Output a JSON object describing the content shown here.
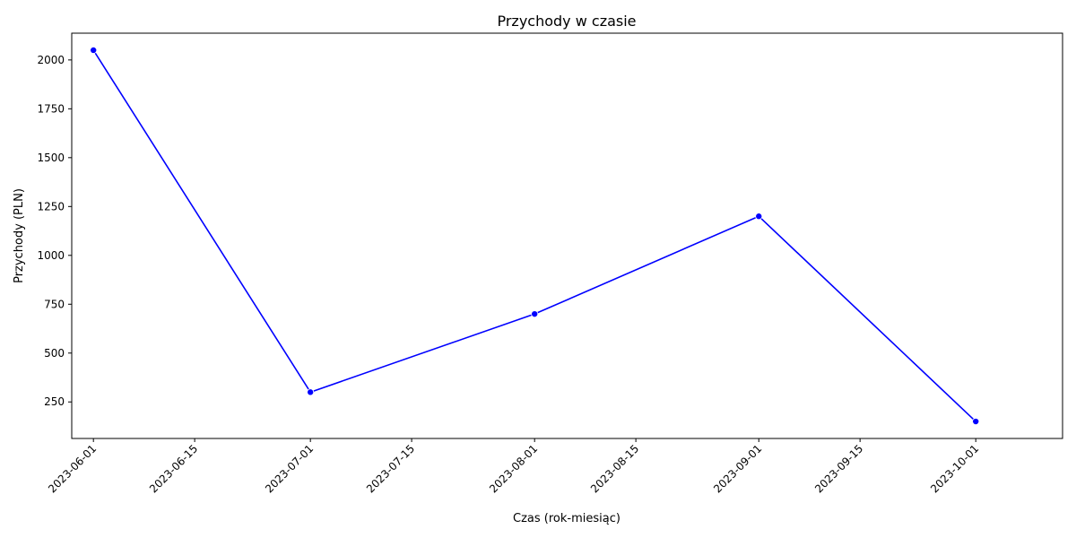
{
  "chart_data": {
    "type": "line",
    "title": "Przychody w czasie",
    "xlabel": "Czas (rok-miesiąc)",
    "ylabel": "Przychody (PLN)",
    "x": [
      "2023-06-01",
      "2023-07-01",
      "2023-08-01",
      "2023-09-01",
      "2023-10-01"
    ],
    "series": [
      {
        "values": [
          2050,
          300,
          700,
          1200,
          150
        ],
        "color": "#0000ff",
        "marker": "circle"
      }
    ],
    "xlim": [
      "2023-05-29",
      "2023-10-13"
    ],
    "ylim": [
      63,
      2137
    ],
    "x_ticks": [
      "2023-06-01",
      "2023-06-15",
      "2023-07-01",
      "2023-07-15",
      "2023-08-01",
      "2023-08-15",
      "2023-09-01",
      "2023-09-15",
      "2023-10-01"
    ],
    "y_ticks": [
      250,
      500,
      750,
      1000,
      1250,
      1500,
      1750,
      2000
    ],
    "x_tick_rotation": 45,
    "grid": false,
    "legend": false
  }
}
